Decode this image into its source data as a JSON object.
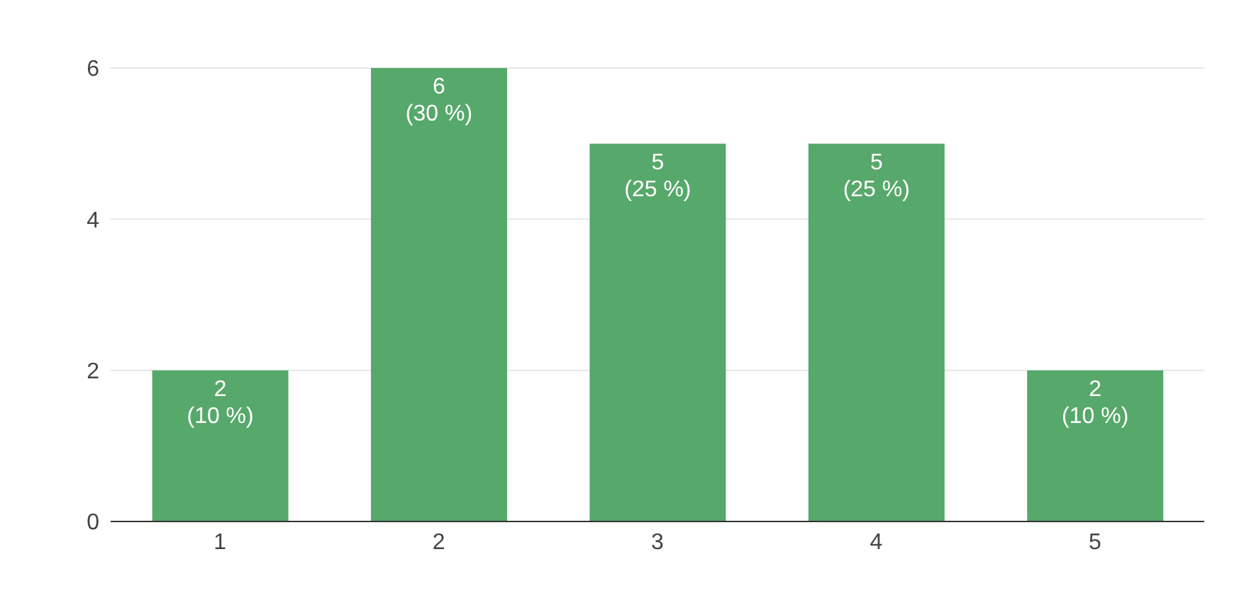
{
  "chart_data": {
    "type": "bar",
    "categories": [
      "1",
      "2",
      "3",
      "4",
      "5"
    ],
    "values": [
      2,
      6,
      5,
      5,
      2
    ],
    "color": "#57a86b",
    "value_labels": [
      "2 (10 %)",
      "6 (30 %)",
      "5 (25 %)",
      "5 (25 %)",
      "2 (10 %)"
    ],
    "ylim": [
      0,
      6
    ],
    "yticks": [
      0,
      2,
      4,
      6
    ],
    "grid": "y"
  }
}
